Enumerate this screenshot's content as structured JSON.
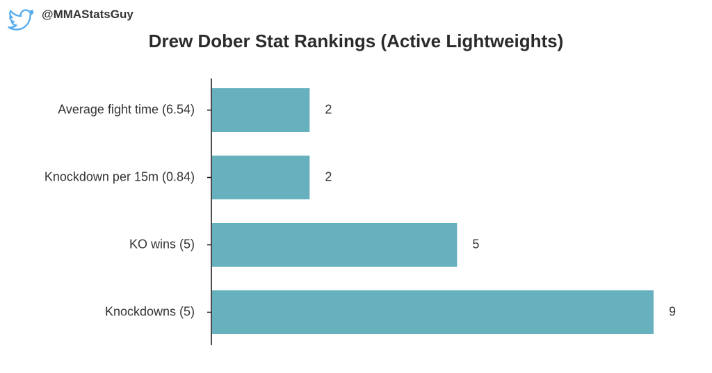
{
  "header": {
    "handle": "@MMAStatsGuy",
    "brand_icon": "twitter-bird-icon"
  },
  "colors": {
    "bar": "#67b1bf",
    "twitter": "#55acee",
    "axis": "#111111",
    "text": "#333333"
  },
  "chart_data": {
    "type": "bar",
    "orientation": "horizontal",
    "title": "Drew Dober Stat Rankings (Active Lightweights)",
    "xlabel": "",
    "ylabel": "",
    "categories": [
      "Average fight time (6.54)",
      "Knockdown per 15m (0.84)",
      "KO wins (5)",
      "Knockdowns (5)"
    ],
    "values": [
      2,
      2,
      5,
      9
    ],
    "data_labels": [
      "2",
      "2",
      "5",
      "9"
    ],
    "xlim": [
      0,
      9
    ],
    "grid": false,
    "legend": "none"
  }
}
